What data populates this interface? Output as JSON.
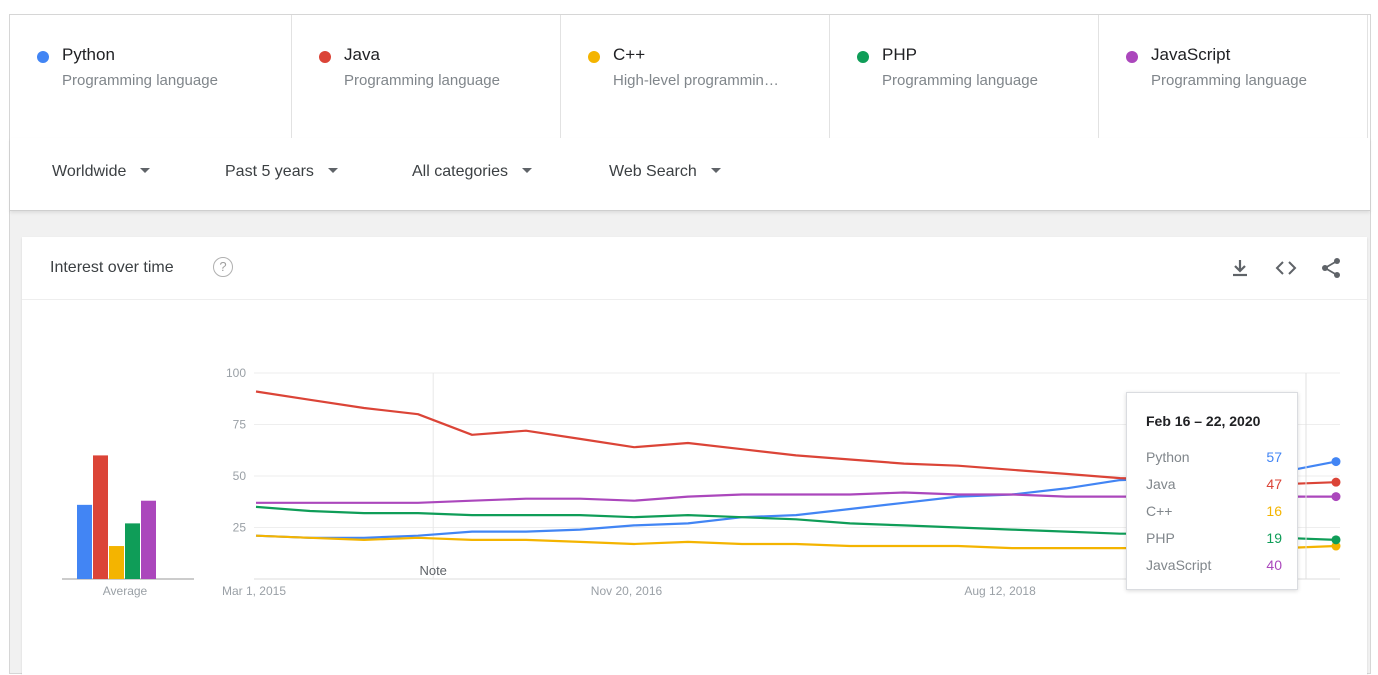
{
  "terms": [
    {
      "name": "Python",
      "sub": "Programming language",
      "color": "#4285f4"
    },
    {
      "name": "Java",
      "sub": "Programming language",
      "color": "#db4437"
    },
    {
      "name": "C++",
      "sub": "High-level programmin…",
      "color": "#f4b400"
    },
    {
      "name": "PHP",
      "sub": "Programming language",
      "color": "#0f9d58"
    },
    {
      "name": "JavaScript",
      "sub": "Programming language",
      "color": "#ab47bc"
    }
  ],
  "filters": {
    "region": "Worldwide",
    "period": "Past 5 years",
    "category": "All categories",
    "search_type": "Web Search"
  },
  "card": {
    "title": "Interest over time",
    "help": "?",
    "icons": [
      "download-icon",
      "embed-icon",
      "share-icon"
    ]
  },
  "chart_data": {
    "type": "line",
    "ylim": [
      0,
      100
    ],
    "yticks": [
      "100",
      "75",
      "50",
      "25"
    ],
    "x_tick_labels": [
      "Mar 1, 2015",
      "Nov 20, 2016",
      "Aug 12, 2018"
    ],
    "annotation": "Note",
    "average_label": "Average",
    "averages": [
      {
        "name": "Python",
        "value": 36
      },
      {
        "name": "Java",
        "value": 60
      },
      {
        "name": "C++",
        "value": 16
      },
      {
        "name": "PHP",
        "value": 27
      },
      {
        "name": "JavaScript",
        "value": 38
      }
    ],
    "x": [
      "2015-03",
      "2015-06",
      "2015-09",
      "2015-12",
      "2016-03",
      "2016-06",
      "2016-09",
      "2016-12",
      "2017-03",
      "2017-06",
      "2017-09",
      "2017-12",
      "2018-03",
      "2018-06",
      "2018-09",
      "2018-12",
      "2019-03",
      "2019-06",
      "2019-09",
      "2019-12",
      "2020-02"
    ],
    "series": [
      {
        "name": "Python",
        "values": [
          21,
          20,
          20,
          21,
          23,
          23,
          24,
          26,
          27,
          30,
          31,
          34,
          37,
          40,
          41,
          44,
          48,
          49,
          50,
          52,
          57
        ]
      },
      {
        "name": "Java",
        "values": [
          91,
          87,
          83,
          80,
          70,
          72,
          68,
          64,
          66,
          63,
          60,
          58,
          56,
          55,
          53,
          51,
          49,
          48,
          47,
          46,
          47
        ]
      },
      {
        "name": "C++",
        "values": [
          21,
          20,
          19,
          20,
          19,
          19,
          18,
          17,
          18,
          17,
          17,
          16,
          16,
          16,
          15,
          15,
          15,
          15,
          15,
          15,
          16
        ]
      },
      {
        "name": "PHP",
        "values": [
          35,
          33,
          32,
          32,
          31,
          31,
          31,
          30,
          31,
          30,
          29,
          27,
          26,
          25,
          24,
          23,
          22,
          22,
          21,
          20,
          19
        ]
      },
      {
        "name": "JavaScript",
        "values": [
          37,
          37,
          37,
          37,
          38,
          39,
          39,
          38,
          40,
          41,
          41,
          41,
          42,
          41,
          41,
          40,
          40,
          40,
          40,
          40,
          40
        ]
      }
    ],
    "tooltip": {
      "date": "Feb 16 – 22, 2020",
      "rows": [
        {
          "name": "Python",
          "value": "57"
        },
        {
          "name": "Java",
          "value": "47"
        },
        {
          "name": "C++",
          "value": "16"
        },
        {
          "name": "PHP",
          "value": "19"
        },
        {
          "name": "JavaScript",
          "value": "40"
        }
      ]
    }
  }
}
